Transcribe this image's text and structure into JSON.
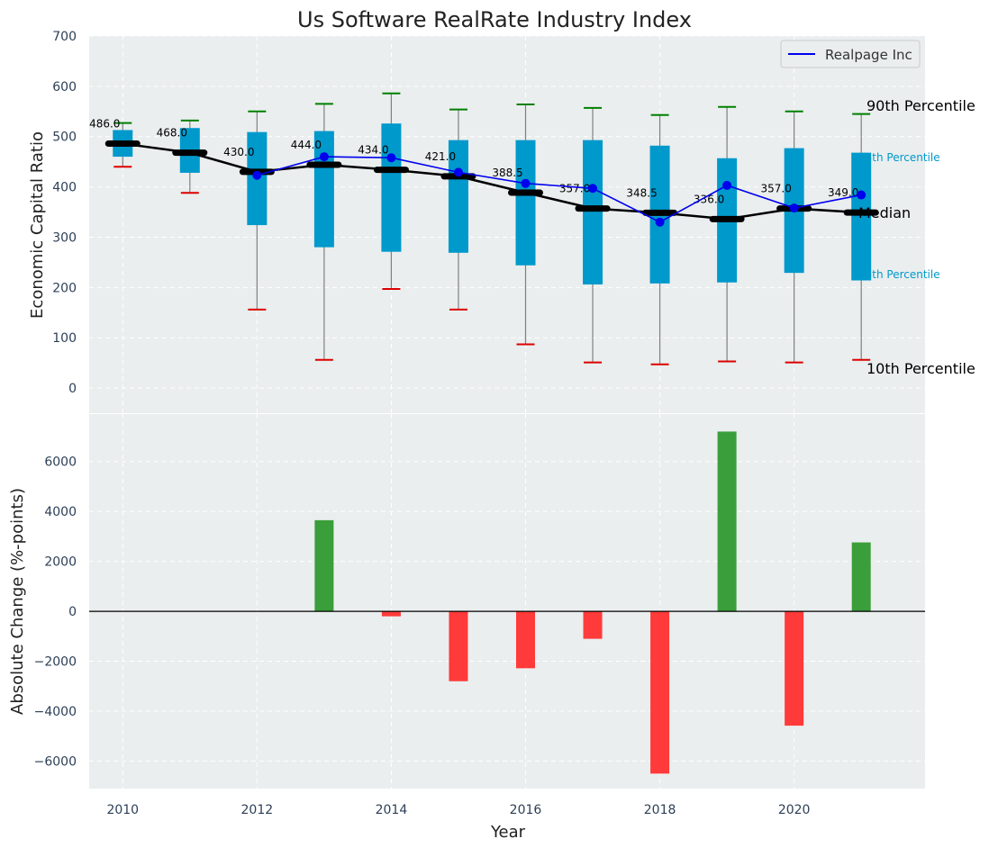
{
  "title": "Us Software RealRate Industry Index",
  "colors": {
    "background": "#ffffff",
    "plot_bg": "#eaeeee",
    "grid": "#ffffff",
    "box": "#0099cc",
    "whisker": "#808080",
    "cap_high": "#008000",
    "cap_low": "#dd0000",
    "median": "#000000",
    "company": "#0000ee",
    "bar_pos": "#3a9e3a",
    "bar_neg": "#ff3a3a",
    "tick_text": "#2e4057"
  },
  "chart_data": [
    {
      "type": "box",
      "title": "Us Software RealRate Industry Index",
      "xlabel": "",
      "ylabel": "Economic Capital Ratio",
      "ylim": [
        -50,
        700
      ],
      "yticks": [
        0,
        100,
        200,
        300,
        400,
        500,
        600,
        700
      ],
      "x": [
        2010,
        2011,
        2012,
        2013,
        2014,
        2015,
        2016,
        2017,
        2018,
        2019,
        2020,
        2021
      ],
      "p10": [
        440,
        388,
        156,
        56,
        197,
        156,
        87,
        51,
        47,
        53,
        51,
        56
      ],
      "p25": [
        460,
        428,
        324,
        280,
        271,
        269,
        244,
        206,
        208,
        210,
        229,
        214
      ],
      "median": [
        486.0,
        468.0,
        430.0,
        444.0,
        434.0,
        421.0,
        388.5,
        357.0,
        348.5,
        336.0,
        357.0,
        349.0
      ],
      "median_labels": [
        "486.0",
        "468.0",
        "430.0",
        "444.0",
        "434.0",
        "421.0",
        "388.5",
        "357.0",
        "348.5",
        "336.0",
        "357.0",
        "349.0"
      ],
      "p75": [
        513,
        517,
        509,
        511,
        526,
        493,
        493,
        493,
        482,
        457,
        477,
        468
      ],
      "p90": [
        527,
        532,
        550,
        565,
        586,
        554,
        564,
        557,
        543,
        559,
        550,
        545
      ],
      "series": [
        {
          "name": "Realpage Inc",
          "x": [
            2012,
            2013,
            2014,
            2015,
            2016,
            2017,
            2018,
            2019,
            2020,
            2021
          ],
          "values": [
            423,
            460,
            458,
            429,
            407,
            397,
            330,
            403,
            358,
            384
          ]
        }
      ],
      "legend": {
        "position": "top-right",
        "entries": [
          "Realpage Inc"
        ]
      },
      "annotations": [
        "90th Percentile",
        "75th Percentile",
        "Median",
        "25th Percentile",
        "10th Percentile"
      ],
      "grid": true
    },
    {
      "type": "bar",
      "xlabel": "Year",
      "ylabel": "Absolute Change (%-points)",
      "ylim": [
        -7100,
        7900
      ],
      "yticks": [
        -6000,
        -4000,
        -2000,
        0,
        2000,
        4000,
        6000
      ],
      "ytick_labels": [
        "−6000",
        "−4000",
        "−2000",
        "0",
        "2000",
        "4000",
        "6000"
      ],
      "x": [
        2013,
        2014,
        2015,
        2016,
        2017,
        2018,
        2019,
        2020,
        2021
      ],
      "values": [
        3650,
        -200,
        -2800,
        -2280,
        -1100,
        -6500,
        7200,
        -4580,
        2760
      ],
      "xlim": [
        2009.5,
        2021.95
      ],
      "xticks": [
        2010,
        2012,
        2014,
        2016,
        2018,
        2020
      ],
      "xtick_labels": [
        "2010",
        "2012",
        "2014",
        "2016",
        "2018",
        "2020"
      ],
      "grid": true
    }
  ]
}
